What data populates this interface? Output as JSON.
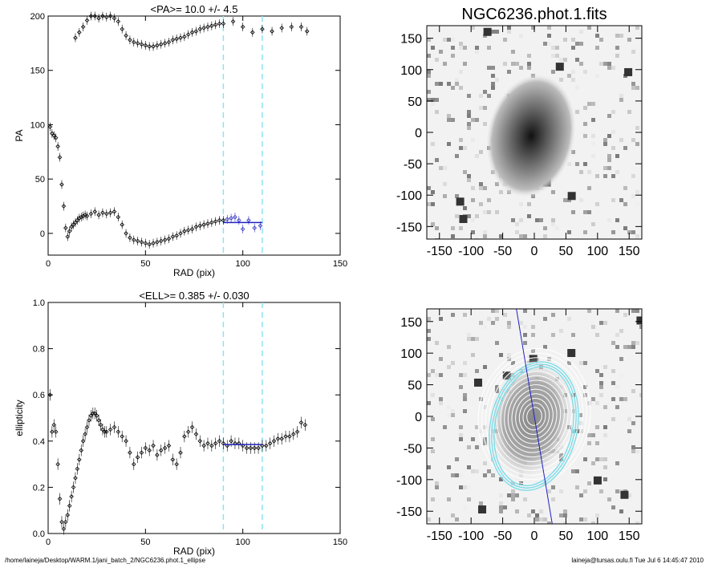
{
  "footer": {
    "path": "/home/laineja/Desktop/WARM.1/jani_batch_2/NGC6236.phot.1_ellipse",
    "user_date": "laineja@tursas.oulu.fi  Tue Jul  6 14:45:47 2010"
  },
  "image_title": "NGC6236.phot.1.fits",
  "chart_data": [
    {
      "type": "scatter",
      "title": "<PA>=  10.0 +/-   4.5",
      "xlabel": "RAD (pix)",
      "ylabel": "PA",
      "xlim": [
        0,
        150
      ],
      "ylim": [
        -20,
        200
      ],
      "xticks": [
        0,
        50,
        100,
        150
      ],
      "yticks": [
        0,
        50,
        100,
        150,
        200
      ],
      "vlines": [
        90,
        110
      ],
      "fit_line": {
        "x": [
          90,
          110
        ],
        "y": [
          10,
          10
        ]
      },
      "branches": [
        {
          "name": "lower",
          "x": [
            1,
            2,
            3,
            4,
            5,
            6,
            7,
            8,
            9,
            10,
            11,
            12,
            13,
            14,
            15,
            16,
            17,
            18,
            19,
            20,
            22,
            24,
            26,
            28,
            30,
            32,
            34,
            36,
            38,
            40,
            42,
            44,
            46,
            48,
            50,
            52,
            54,
            56,
            58,
            60,
            62,
            64,
            66,
            68,
            70,
            72,
            74,
            76,
            78,
            80,
            82,
            84,
            86,
            88,
            90
          ],
          "y": [
            98,
            92,
            90,
            88,
            80,
            70,
            45,
            25,
            5,
            -3,
            2,
            6,
            8,
            10,
            12,
            14,
            15,
            16,
            17,
            16,
            18,
            20,
            17,
            19,
            18,
            19,
            20,
            15,
            8,
            0,
            -4,
            -6,
            -7,
            -8,
            -9,
            -10,
            -9,
            -8,
            -7,
            -6,
            -5,
            -3,
            -2,
            0,
            2,
            3,
            4,
            6,
            7,
            8,
            9,
            10,
            11,
            12,
            12
          ]
        },
        {
          "name": "upper",
          "x": [
            14,
            16,
            18,
            20,
            22,
            24,
            26,
            28,
            30,
            32,
            34,
            36,
            38,
            40,
            42,
            44,
            46,
            48,
            50,
            52,
            54,
            56,
            58,
            60,
            62,
            64,
            66,
            68,
            70,
            72,
            74,
            76,
            78,
            80,
            82,
            84,
            86,
            88,
            90,
            95,
            100,
            105,
            110,
            115,
            120,
            125,
            130,
            133
          ],
          "y": [
            180,
            185,
            190,
            196,
            200,
            200,
            198,
            200,
            199,
            200,
            198,
            195,
            188,
            182,
            178,
            176,
            175,
            174,
            173,
            172,
            172,
            173,
            174,
            175,
            176,
            178,
            179,
            180,
            181,
            183,
            185,
            186,
            188,
            189,
            190,
            191,
            192,
            193,
            193,
            195,
            190,
            185,
            188,
            186,
            189,
            190,
            190,
            186
          ]
        }
      ],
      "fit_points": {
        "x": [
          92,
          94,
          96,
          98,
          100,
          103,
          106,
          109
        ],
        "y": [
          13,
          14,
          15,
          12,
          4,
          12,
          5,
          7
        ]
      }
    },
    {
      "type": "scatter",
      "title": "<ELL>= 0.385 +/-  0.030",
      "xlabel": "RAD (pix)",
      "ylabel": "ellipticity",
      "xlim": [
        0,
        150
      ],
      "ylim": [
        0,
        1.0
      ],
      "xticks": [
        0,
        50,
        100,
        150
      ],
      "yticks": [
        0.0,
        0.2,
        0.4,
        0.6,
        0.8,
        1.0
      ],
      "vlines": [
        90,
        110
      ],
      "fit_line": {
        "x": [
          90,
          110
        ],
        "y": [
          0.385,
          0.385
        ]
      },
      "x": [
        1,
        2,
        3,
        4,
        5,
        6,
        7,
        8,
        9,
        10,
        11,
        12,
        13,
        14,
        15,
        16,
        17,
        18,
        19,
        20,
        21,
        22,
        23,
        24,
        25,
        26,
        27,
        28,
        29,
        30,
        32,
        34,
        36,
        38,
        40,
        42,
        44,
        46,
        48,
        50,
        52,
        54,
        56,
        58,
        60,
        62,
        64,
        66,
        68,
        70,
        72,
        74,
        76,
        78,
        80,
        82,
        84,
        86,
        88,
        90,
        92,
        94,
        96,
        98,
        100,
        102,
        104,
        106,
        108,
        110,
        112,
        114,
        116,
        118,
        120,
        122,
        124,
        126,
        128,
        130,
        132
      ],
      "y": [
        0.6,
        0.44,
        0.47,
        0.44,
        0.3,
        0.15,
        0.05,
        0.02,
        0.05,
        0.08,
        0.12,
        0.16,
        0.2,
        0.24,
        0.28,
        0.32,
        0.36,
        0.4,
        0.43,
        0.46,
        0.49,
        0.51,
        0.52,
        0.52,
        0.51,
        0.49,
        0.47,
        0.45,
        0.44,
        0.44,
        0.45,
        0.46,
        0.44,
        0.42,
        0.4,
        0.35,
        0.3,
        0.33,
        0.35,
        0.37,
        0.36,
        0.38,
        0.34,
        0.36,
        0.37,
        0.38,
        0.32,
        0.3,
        0.35,
        0.42,
        0.44,
        0.46,
        0.43,
        0.4,
        0.38,
        0.39,
        0.38,
        0.39,
        0.4,
        0.39,
        0.38,
        0.4,
        0.39,
        0.39,
        0.38,
        0.37,
        0.37,
        0.37,
        0.37,
        0.38,
        0.38,
        0.39,
        0.4,
        0.41,
        0.41,
        0.42,
        0.42,
        0.43,
        0.44,
        0.48,
        0.47
      ]
    },
    {
      "type": "heatmap",
      "title": "NGC6236.phot.1.fits",
      "xticks": [
        -150,
        -100,
        -50,
        0,
        50,
        100,
        150
      ],
      "yticks": [
        150,
        100,
        50,
        0,
        -50,
        -100,
        -150
      ],
      "xlim": [
        -170,
        170
      ],
      "ylim": [
        -170,
        170
      ]
    },
    {
      "type": "heatmap",
      "title": "",
      "xticks": [
        -150,
        -100,
        -50,
        0,
        50,
        100,
        150
      ],
      "yticks": [
        150,
        100,
        50,
        0,
        -50,
        -100,
        -150
      ],
      "xlim": [
        -170,
        170
      ],
      "ylim": [
        -170,
        170
      ]
    }
  ]
}
